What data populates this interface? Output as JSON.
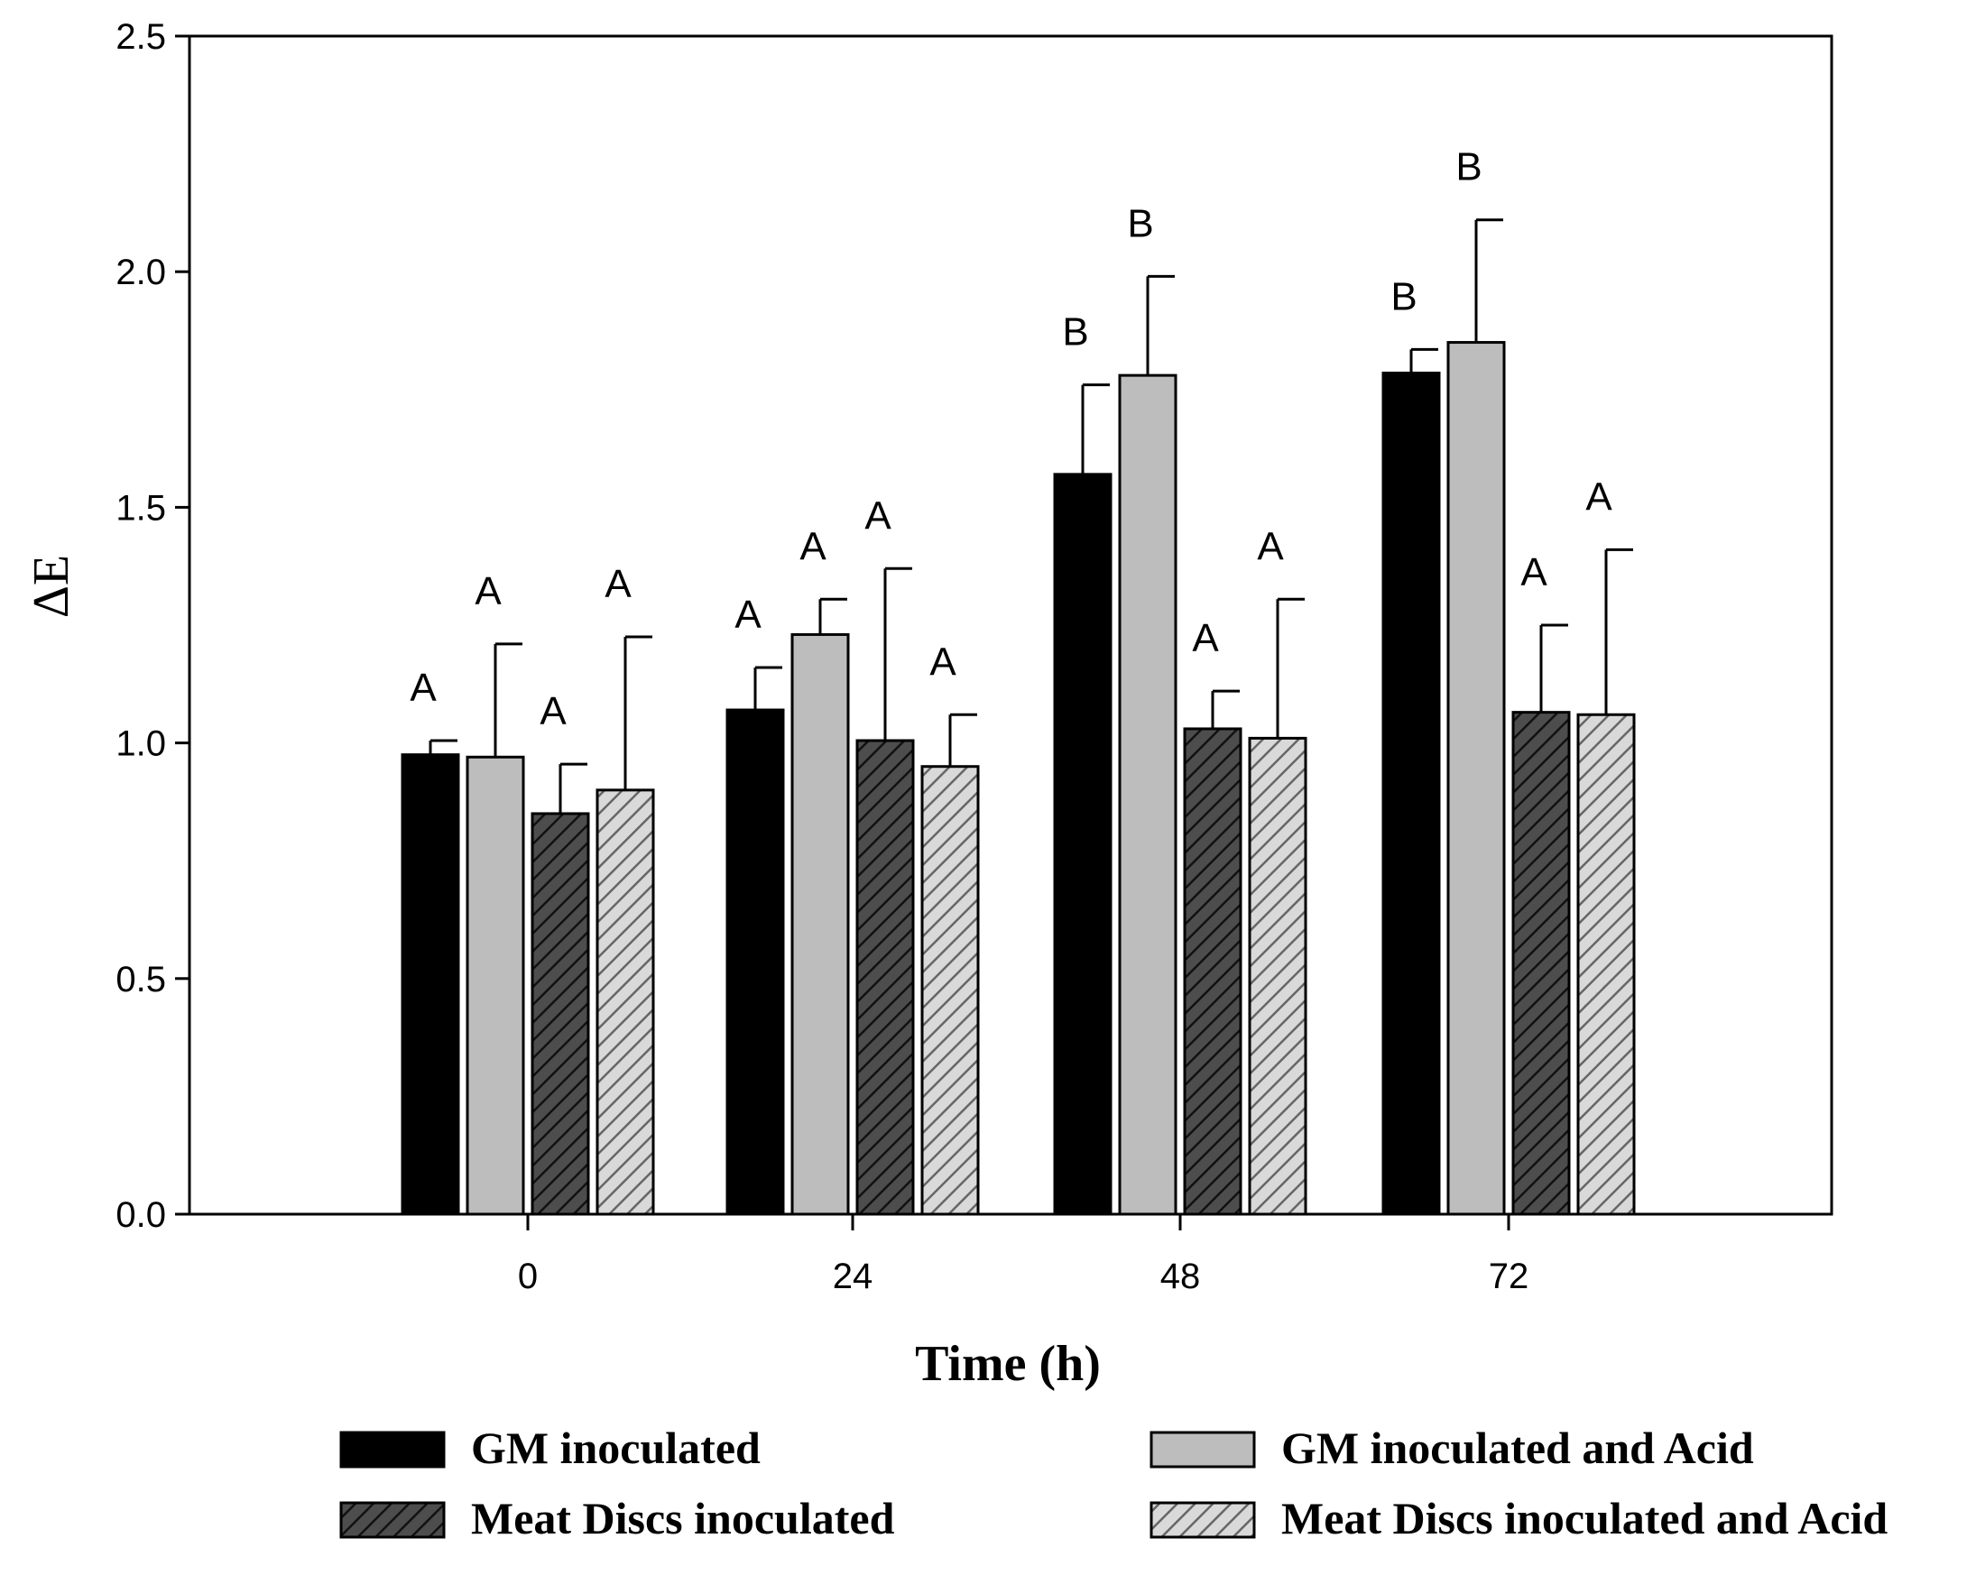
{
  "chart_data": {
    "type": "bar",
    "title": "",
    "xlabel": "Time (h)",
    "ylabel": "ΔE",
    "ylim": [
      0,
      2.5
    ],
    "yticks": [
      "0.0",
      "0.5",
      "1.0",
      "1.5",
      "2.0",
      "2.5"
    ],
    "categories": [
      "0",
      "24",
      "48",
      "72"
    ],
    "series": [
      {
        "name": "GM inoculated",
        "fill": "#000000",
        "hatch": false,
        "values": [
          0.975,
          1.07,
          1.57,
          1.785
        ],
        "errors": [
          0.03,
          0.09,
          0.19,
          0.05
        ],
        "significance": [
          "A",
          "A",
          "B",
          "B"
        ]
      },
      {
        "name": "GM inoculated and Acid",
        "fill": "#bdbdbd",
        "hatch": false,
        "values": [
          0.97,
          1.23,
          1.78,
          1.85
        ],
        "errors": [
          0.24,
          0.075,
          0.21,
          0.26
        ],
        "significance": [
          "A",
          "A",
          "B",
          "B"
        ]
      },
      {
        "name": "Meat Discs inoculated",
        "fill": "#4d4d4d",
        "hatch": true,
        "values": [
          0.85,
          1.005,
          1.03,
          1.065
        ],
        "errors": [
          0.105,
          0.365,
          0.08,
          0.185
        ],
        "significance": [
          "A",
          "A",
          "A",
          "A"
        ]
      },
      {
        "name": "Meat Discs inoculated and Acid",
        "fill": "#d9d9d9",
        "hatch": true,
        "values": [
          0.9,
          0.95,
          1.01,
          1.06
        ],
        "errors": [
          0.325,
          0.11,
          0.295,
          0.35
        ],
        "significance": [
          "A",
          "A",
          "A",
          "A"
        ]
      }
    ],
    "legend_position": "bottom"
  }
}
